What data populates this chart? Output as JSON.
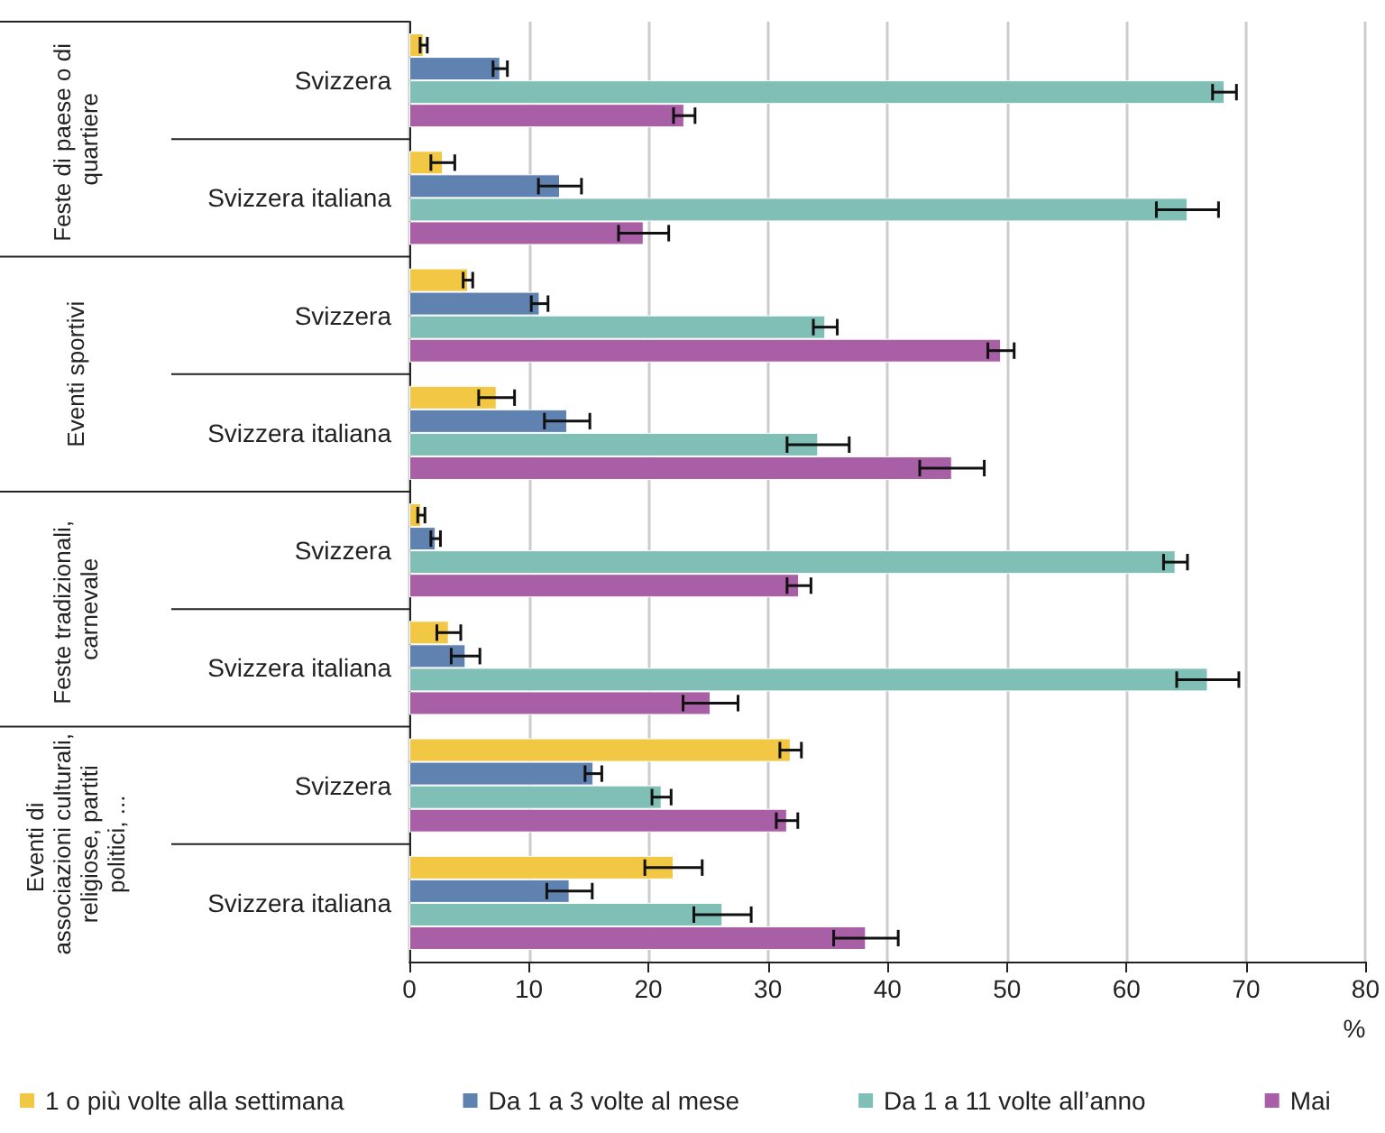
{
  "chart_data": {
    "type": "bar",
    "orientation": "horizontal",
    "categories": [
      "Svizzera",
      "Svizzera italiana",
      "Svizzera",
      "Svizzera italiana",
      "Svizzera",
      "Svizzera italiana",
      "Svizzera",
      "Svizzera italiana"
    ],
    "annotations": [
      "Feste di paese o di quartiere",
      "Eventi sportivi",
      "Feste tradizionali, carnevale",
      "Eventi di associazioni culturali, religiose, partiti politici, ..."
    ],
    "series": [
      {
        "name": "1 o più volte alla settimana",
        "color": "#f2c744",
        "values": [
          1.2,
          2.8,
          4.9,
          7.3,
          1.0,
          3.3,
          31.9,
          22.1
        ],
        "errors": [
          0.3,
          1.0,
          0.4,
          1.5,
          0.3,
          1.0,
          0.9,
          2.4
        ]
      },
      {
        "name": "Da 1 a 3 volte al mese",
        "color": "#5f82b0",
        "values": [
          7.6,
          12.6,
          10.9,
          13.2,
          2.2,
          4.7,
          15.4,
          13.4
        ],
        "errors": [
          0.6,
          1.8,
          0.7,
          1.9,
          0.4,
          1.2,
          0.7,
          1.9
        ]
      },
      {
        "name": "Da 1 a 11 volte all’anno",
        "color": "#7fbfb5",
        "values": [
          68.2,
          65.1,
          34.8,
          34.2,
          64.1,
          66.8,
          21.1,
          26.2
        ],
        "errors": [
          1.0,
          2.6,
          1.0,
          2.6,
          1.0,
          2.6,
          0.8,
          2.4
        ]
      },
      {
        "name": "Mai",
        "color": "#a95fa5",
        "values": [
          23.0,
          19.6,
          49.5,
          45.4,
          32.6,
          25.2,
          31.6,
          38.2
        ],
        "errors": [
          0.9,
          2.1,
          1.1,
          2.7,
          1.0,
          2.3,
          0.9,
          2.7
        ]
      }
    ],
    "xlabel": "%",
    "xlim": [
      0,
      80
    ],
    "xticks": [
      0,
      10,
      20,
      30,
      40,
      50,
      60,
      70,
      80
    ],
    "grid": "x",
    "legend": "bottom"
  }
}
